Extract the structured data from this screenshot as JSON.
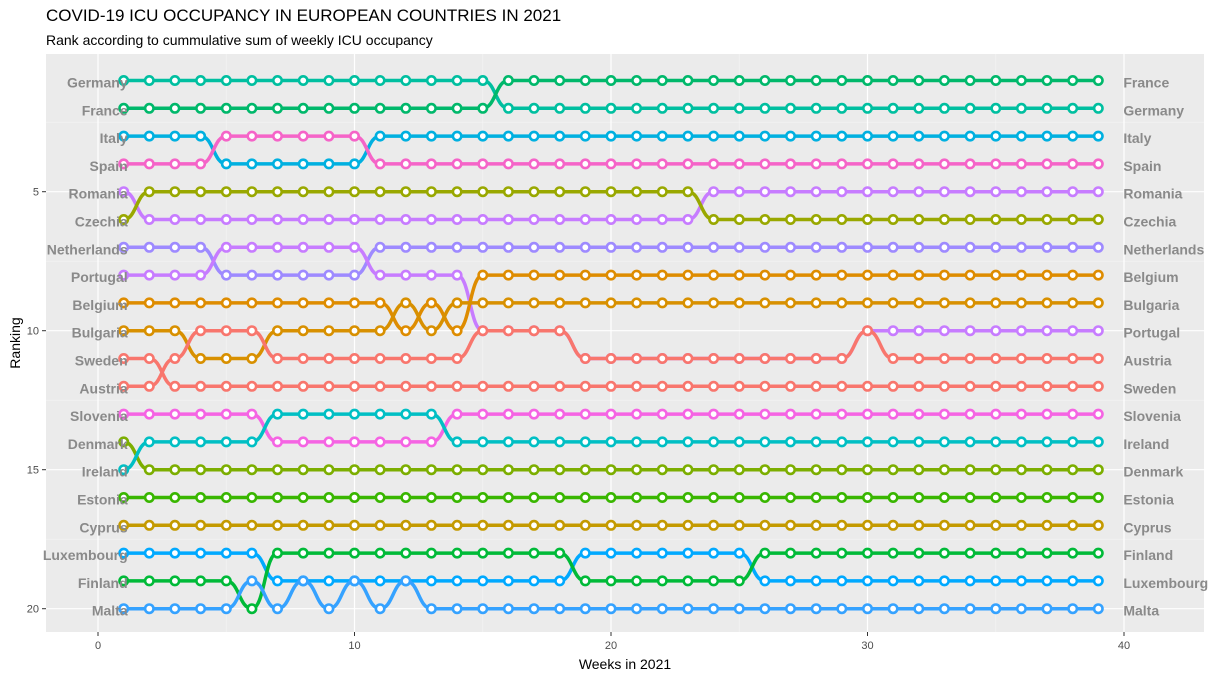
{
  "chart_data": {
    "type": "line",
    "title": "COVID-19 ICU OCCUPANCY IN EUROPEAN COUNTRIES IN 2021",
    "subtitle": "Rank according to cummulative sum of weekly ICU occupancy",
    "xlabel": "Weeks in 2021",
    "ylabel": "Ranking",
    "xlim": [
      -2,
      43
    ],
    "ylim": [
      0.5,
      20.8
    ],
    "y_reversed": true,
    "x_ticks": [
      0,
      10,
      20,
      30,
      40
    ],
    "y_ticks": [
      5,
      10,
      15,
      20
    ],
    "grid": true,
    "weeks": [
      1,
      39
    ],
    "start_labels": [
      "Germany",
      "France",
      "Italy",
      "Spain",
      "Romania",
      "Czechia",
      "Netherlands",
      "Portugal",
      "Belgium",
      "Bulgaria",
      "Sweden",
      "Austria",
      "Slovenia",
      "Denmark",
      "Ireland",
      "Estonia",
      "Cyprus",
      "Luxembourg",
      "Finland",
      "Malta"
    ],
    "end_labels": [
      "France",
      "Germany",
      "Italy",
      "Spain",
      "Romania",
      "Czechia",
      "Netherlands",
      "Belgium",
      "Bulgaria",
      "Portugal",
      "Austria",
      "Sweden",
      "Slovenia",
      "Ireland",
      "Denmark",
      "Estonia",
      "Cyprus",
      "Finland",
      "Luxembourg",
      "Malta"
    ],
    "series": [
      {
        "name": "Germany",
        "color": "#00BFA0",
        "start_rank": 1,
        "changes": [
          [
            16,
            2
          ]
        ]
      },
      {
        "name": "France",
        "color": "#00B86B",
        "start_rank": 2,
        "changes": [
          [
            16,
            1
          ]
        ]
      },
      {
        "name": "Italy",
        "color": "#00B0E0",
        "start_rank": 3,
        "changes": [
          [
            5,
            4
          ],
          [
            11,
            3
          ]
        ]
      },
      {
        "name": "Spain",
        "color": "#F564C8",
        "start_rank": 4,
        "changes": [
          [
            5,
            3
          ],
          [
            11,
            4
          ]
        ]
      },
      {
        "name": "Romania",
        "color": "#C77CFF",
        "start_rank": 5,
        "changes": [
          [
            2,
            6
          ],
          [
            24,
            5
          ]
        ]
      },
      {
        "name": "Czechia",
        "color": "#99A800",
        "start_rank": 6,
        "changes": [
          [
            2,
            5
          ],
          [
            24,
            6
          ]
        ]
      },
      {
        "name": "Netherlands",
        "color": "#9E8AFF",
        "start_rank": 7,
        "changes": [
          [
            5,
            8
          ],
          [
            11,
            7
          ]
        ]
      },
      {
        "name": "Portugal",
        "color": "#C77CFF",
        "start_rank": 8,
        "changes": [
          [
            5,
            7
          ],
          [
            11,
            8
          ],
          [
            15,
            10
          ],
          [
            19,
            11
          ],
          [
            30,
            10
          ]
        ]
      },
      {
        "name": "Belgium",
        "color": "#DE8C00",
        "start_rank": 9,
        "changes": [
          [
            12,
            10
          ],
          [
            13,
            9
          ],
          [
            14,
            10
          ],
          [
            15,
            8
          ]
        ]
      },
      {
        "name": "Bulgaria",
        "color": "#D89000",
        "start_rank": 10,
        "changes": [
          [
            4,
            11
          ],
          [
            7,
            10
          ],
          [
            12,
            9
          ],
          [
            13,
            10
          ],
          [
            14,
            9
          ]
        ]
      },
      {
        "name": "Sweden",
        "color": "#F8766D",
        "start_rank": 11,
        "changes": [
          [
            3,
            12
          ]
        ]
      },
      {
        "name": "Austria",
        "color": "#F8766D",
        "start_rank": 12,
        "changes": [
          [
            3,
            11
          ],
          [
            4,
            10
          ],
          [
            7,
            11
          ],
          [
            15,
            10
          ],
          [
            19,
            11
          ],
          [
            30,
            10
          ],
          [
            31,
            11
          ]
        ]
      },
      {
        "name": "Slovenia",
        "color": "#F564E3",
        "start_rank": 13,
        "changes": [
          [
            7,
            14
          ],
          [
            14,
            13
          ]
        ]
      },
      {
        "name": "Denmark",
        "color": "#7CAE00",
        "start_rank": 14,
        "changes": [
          [
            2,
            15
          ]
        ]
      },
      {
        "name": "Ireland",
        "color": "#00BFC4",
        "start_rank": 15,
        "changes": [
          [
            2,
            14
          ],
          [
            7,
            13
          ],
          [
            14,
            14
          ]
        ]
      },
      {
        "name": "Estonia",
        "color": "#39B600",
        "start_rank": 16,
        "changes": []
      },
      {
        "name": "Cyprus",
        "color": "#C49A00",
        "start_rank": 17,
        "changes": []
      },
      {
        "name": "Luxembourg",
        "color": "#00A9FF",
        "start_rank": 18,
        "changes": [
          [
            7,
            19
          ],
          [
            19,
            18
          ],
          [
            26,
            19
          ]
        ]
      },
      {
        "name": "Finland",
        "color": "#00BA38",
        "start_rank": 19,
        "changes": [
          [
            6,
            20
          ],
          [
            7,
            18
          ],
          [
            19,
            19
          ],
          [
            26,
            18
          ]
        ]
      },
      {
        "name": "Malta",
        "color": "#35A2FF",
        "start_rank": 20,
        "changes": [
          [
            6,
            19
          ],
          [
            7,
            20
          ],
          [
            8,
            19
          ],
          [
            9,
            20
          ],
          [
            10,
            19
          ],
          [
            11,
            20
          ],
          [
            12,
            19
          ],
          [
            13,
            20
          ]
        ]
      }
    ]
  }
}
